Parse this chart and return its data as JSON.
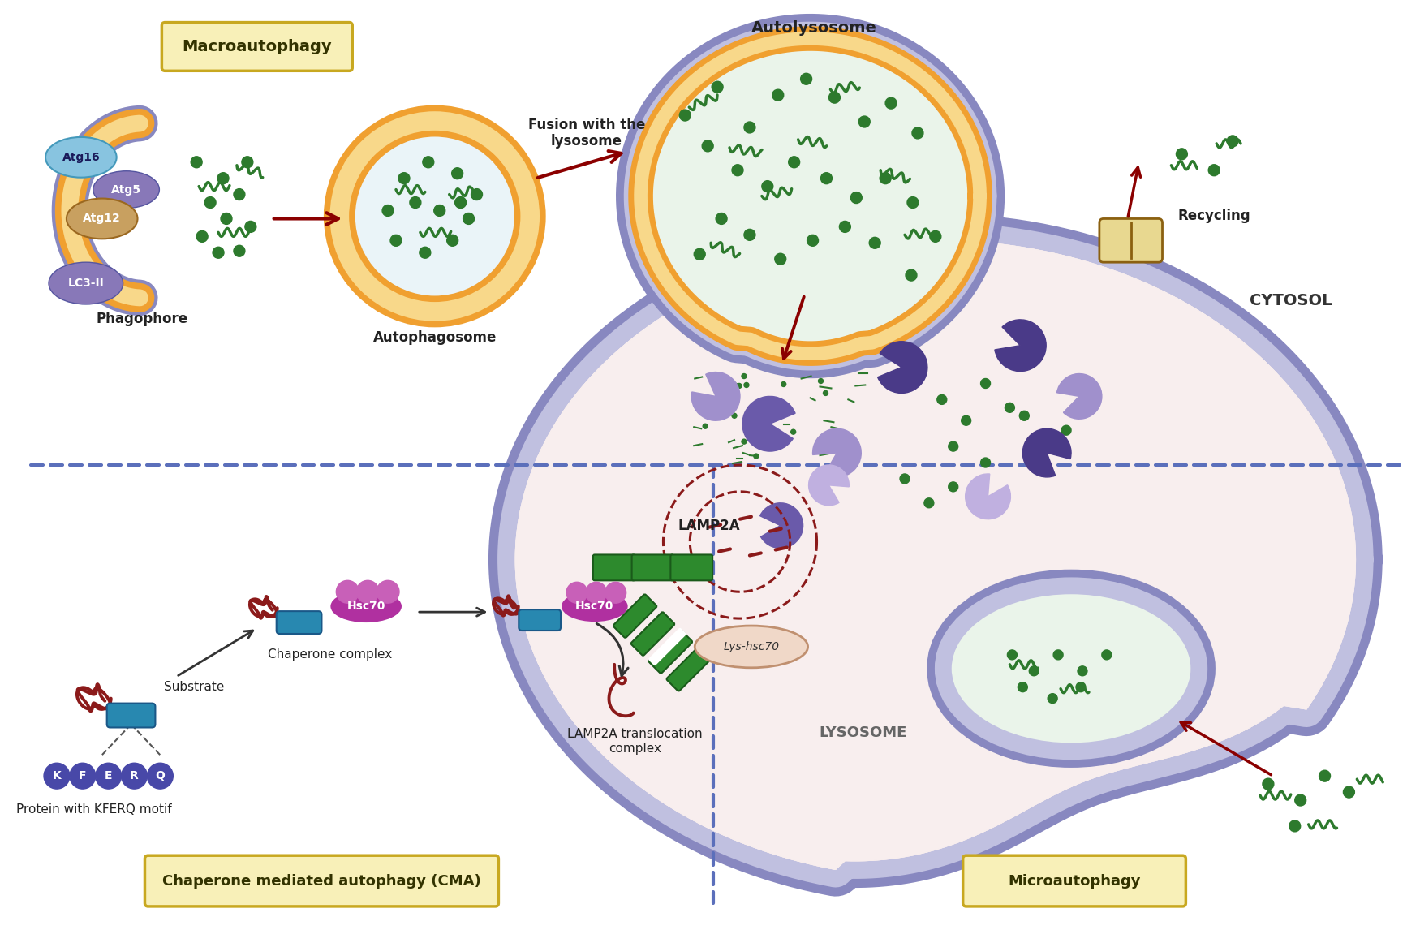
{
  "bg_color": "#ffffff",
  "dashed_color": "#5b6fbb",
  "cell_fill": "#f8eeee",
  "cell_border1": "#9090c0",
  "cell_border2": "#c0c0e0",
  "orange1": "#f0a030",
  "orange2": "#f8d88a",
  "green": "#2d7a2d",
  "dark_red": "#8b0000",
  "pac_dark": "#4a3a88",
  "pac_med": "#6a5aaa",
  "pac_light": "#a090cc",
  "pac_vlite": "#c0b0e0",
  "atg16_fc": "#88c4e0",
  "atg16_ec": "#4499bb",
  "atg5_fc": "#8878b8",
  "atg5_ec": "#5555a0",
  "atg12_fc": "#c8a060",
  "atg12_ec": "#9b6820",
  "lc3_fc": "#8878b8",
  "lc3_ec": "#5555a0",
  "hsc70_fc": "#b030a0",
  "hsc70_bumps": "#c860b8",
  "hsc70_top": "#c860b8",
  "lamp2a_fc": "#2d8a2d",
  "lamp2a_ec": "#1a5a1a",
  "lys_hsc70_fc": "#f0d8c8",
  "lys_hsc70_ec": "#c09070",
  "kferq_fc": "#4848a8",
  "substrate_fc": "#2888b0",
  "substrate_ec": "#1a5888",
  "protein_color": "#8b1a1a",
  "recycler_fc": "#e8d890",
  "recycler_ec": "#8b6010",
  "box_fc": "#f8f0b8",
  "box_ec": "#c8a820",
  "macro_label": "Macroautophagy",
  "phago_label": "Phagophore",
  "autophago_label": "Autophagosome",
  "autolyso_label": "Autolysosome",
  "fusion_label": "Fusion with the\nlysosome",
  "recycling_label": "Recycling",
  "cytosol_label": "CYTOSOL",
  "lyso_label": "LYSOSOME",
  "cma_label": "Chaperone mediated autophagy (CMA)",
  "micro_label": "Microautophagy",
  "lamp2a_label": "LAMP2A",
  "lys_hsc70_label": "Lys-hsc70",
  "lamp2a_complex_label": "LAMP2A translocation\ncomplex",
  "chaperone_label": "Chaperone complex",
  "substrate_label": "Substrate",
  "kferq_label": "Protein with KFERQ motif",
  "hsc70_label": "Hsc70",
  "atg16_label": "Atg16",
  "atg5_label": "Atg5",
  "atg12_label": "Atg12",
  "lc3_label": "LC3-II"
}
